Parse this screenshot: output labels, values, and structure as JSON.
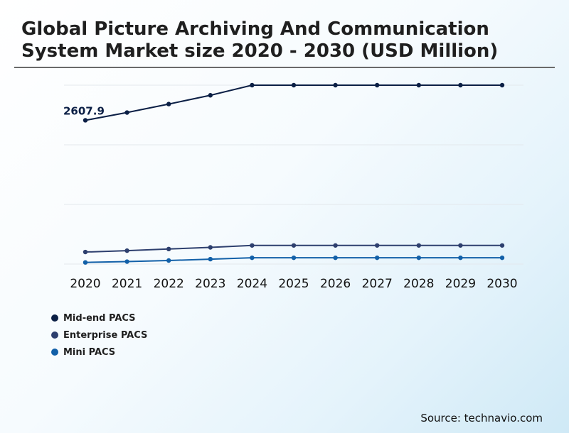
{
  "chart_data": {
    "type": "line",
    "title": "Global Picture Archiving And Communication System Market size 2020 - 2030 (USD Million)",
    "xlabel": "",
    "ylabel": "",
    "categories": [
      "2020",
      "2021",
      "2022",
      "2023",
      "2024",
      "2025",
      "2026",
      "2027",
      "2028",
      "2029",
      "2030"
    ],
    "series": [
      {
        "name": "Mid-end PACS",
        "color": "#0b1f45",
        "values": [
          2607.9,
          2750,
          2905,
          3065,
          3250,
          3250,
          3250,
          3250,
          3250,
          3250,
          3250
        ]
      },
      {
        "name": "Enterprise PACS",
        "color": "#2d3f6e",
        "values": [
          200,
          225,
          255,
          285,
          320,
          320,
          320,
          320,
          320,
          320,
          320
        ]
      },
      {
        "name": "Mini PACS",
        "color": "#1260a8",
        "values": [
          10,
          25,
          45,
          70,
          95,
          95,
          95,
          95,
          95,
          95,
          95
        ]
      }
    ],
    "annotations": [
      {
        "series": "Mid-end PACS",
        "category": "2020",
        "text": "2607.9"
      }
    ],
    "ylim": [
      -20,
      3250
    ],
    "grid": true,
    "legend_position": "bottom-left"
  },
  "source": "Source: technavio.com"
}
